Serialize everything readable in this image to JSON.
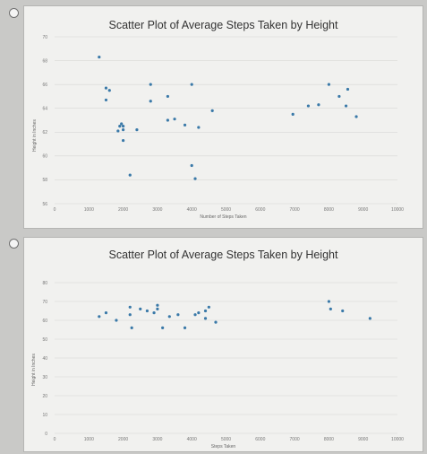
{
  "chart_data": [
    {
      "type": "scatter",
      "title": "Scatter Plot of Average Steps Taken by Height",
      "xlabel": "Number of Steps Taken",
      "ylabel": "Height in Inches",
      "xlim": [
        0,
        10000
      ],
      "ylim": [
        56,
        70
      ],
      "xticks": [
        0,
        1000,
        2000,
        3000,
        4000,
        5000,
        6000,
        7000,
        8000,
        9000,
        10000
      ],
      "yticks": [
        56,
        58,
        60,
        62,
        64,
        66,
        68,
        70
      ],
      "grid": true,
      "points": [
        {
          "x": 1300,
          "y": 68.3
        },
        {
          "x": 1500,
          "y": 65.7
        },
        {
          "x": 1600,
          "y": 65.5
        },
        {
          "x": 1500,
          "y": 64.7
        },
        {
          "x": 1900,
          "y": 62.5
        },
        {
          "x": 1950,
          "y": 62.7
        },
        {
          "x": 2000,
          "y": 62.5
        },
        {
          "x": 1850,
          "y": 62.1
        },
        {
          "x": 2000,
          "y": 62.2
        },
        {
          "x": 2000,
          "y": 61.3
        },
        {
          "x": 2200,
          "y": 58.4
        },
        {
          "x": 2400,
          "y": 62.2
        },
        {
          "x": 2800,
          "y": 66.0
        },
        {
          "x": 2800,
          "y": 64.6
        },
        {
          "x": 3300,
          "y": 65.0
        },
        {
          "x": 3300,
          "y": 63.0
        },
        {
          "x": 3500,
          "y": 63.1
        },
        {
          "x": 3800,
          "y": 62.6
        },
        {
          "x": 4000,
          "y": 66.0
        },
        {
          "x": 4000,
          "y": 59.2
        },
        {
          "x": 4100,
          "y": 58.1
        },
        {
          "x": 4200,
          "y": 62.4
        },
        {
          "x": 4600,
          "y": 63.8
        },
        {
          "x": 6950,
          "y": 63.5
        },
        {
          "x": 7400,
          "y": 64.2
        },
        {
          "x": 7700,
          "y": 64.3
        },
        {
          "x": 8000,
          "y": 66.0
        },
        {
          "x": 8300,
          "y": 65.0
        },
        {
          "x": 8550,
          "y": 65.6
        },
        {
          "x": 8500,
          "y": 64.2
        },
        {
          "x": 8800,
          "y": 63.3
        }
      ]
    },
    {
      "type": "scatter",
      "title": "Scatter Plot of Average Steps Taken by Height",
      "xlabel": "Steps Taken",
      "ylabel": "Height in Inches",
      "xlim": [
        0,
        10000
      ],
      "ylim": [
        0,
        80
      ],
      "xticks": [
        0,
        1000,
        2000,
        3000,
        4000,
        5000,
        6000,
        7000,
        8000,
        9000,
        10000
      ],
      "yticks": [
        0,
        10,
        20,
        30,
        40,
        50,
        60,
        70,
        80
      ],
      "grid": true,
      "points": [
        {
          "x": 1300,
          "y": 62
        },
        {
          "x": 1500,
          "y": 64
        },
        {
          "x": 1800,
          "y": 60
        },
        {
          "x": 2200,
          "y": 67
        },
        {
          "x": 2200,
          "y": 63
        },
        {
          "x": 2250,
          "y": 56
        },
        {
          "x": 2500,
          "y": 66
        },
        {
          "x": 2700,
          "y": 65
        },
        {
          "x": 2900,
          "y": 64
        },
        {
          "x": 3000,
          "y": 68
        },
        {
          "x": 3000,
          "y": 66
        },
        {
          "x": 3150,
          "y": 56
        },
        {
          "x": 3350,
          "y": 62
        },
        {
          "x": 3600,
          "y": 63
        },
        {
          "x": 3800,
          "y": 56
        },
        {
          "x": 4100,
          "y": 63
        },
        {
          "x": 4200,
          "y": 64
        },
        {
          "x": 4400,
          "y": 65
        },
        {
          "x": 4500,
          "y": 67
        },
        {
          "x": 4400,
          "y": 61
        },
        {
          "x": 4700,
          "y": 59
        },
        {
          "x": 8000,
          "y": 70
        },
        {
          "x": 8050,
          "y": 66
        },
        {
          "x": 8400,
          "y": 65
        },
        {
          "x": 9200,
          "y": 61
        }
      ]
    }
  ]
}
